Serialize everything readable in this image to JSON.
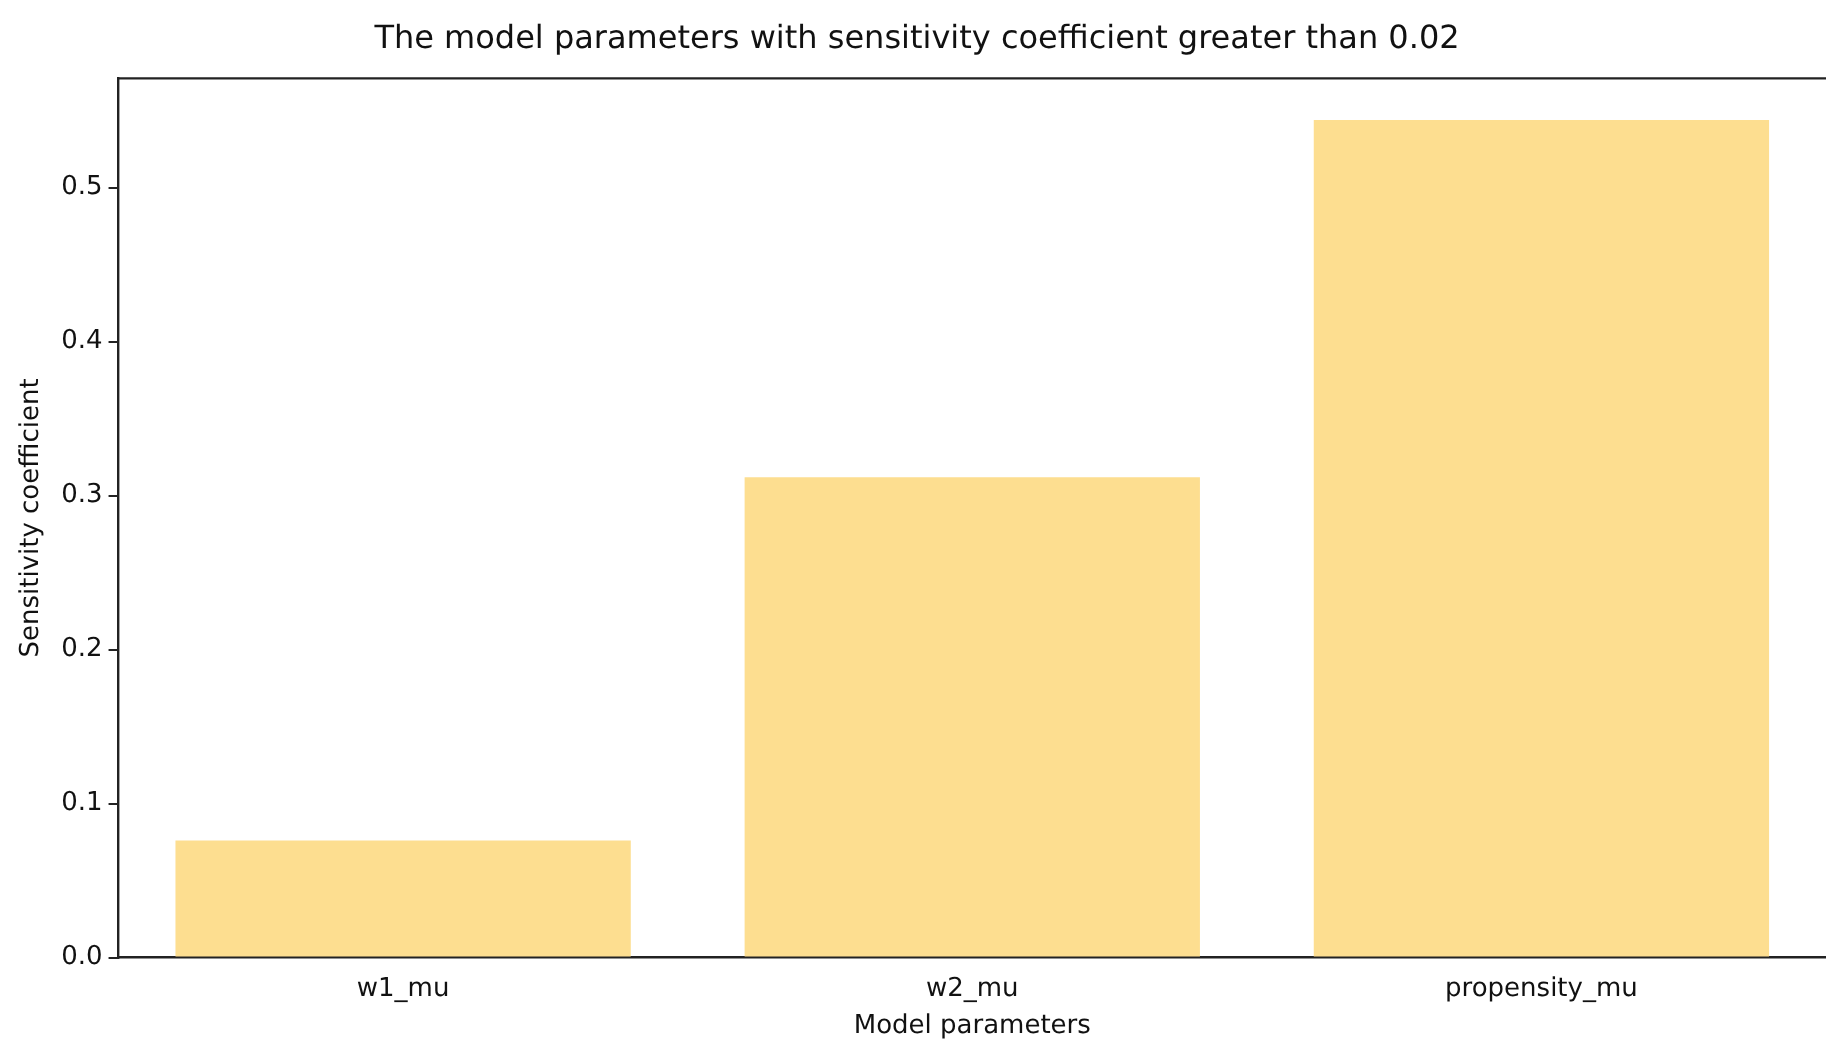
{
  "chart_data": {
    "type": "bar",
    "title": "The model parameters with sensitivity coefficient greater than 0.02",
    "xlabel": "Model parameters",
    "ylabel": "Sensitivity coefficient",
    "categories": [
      "w1_mu",
      "w2_mu",
      "propensity_mu"
    ],
    "values": [
      0.076,
      0.312,
      0.544
    ],
    "color": "#fdde90",
    "ylim": [
      0,
      0.571
    ],
    "yticks": [
      {
        "value": 0,
        "label": "0.0"
      },
      0.1,
      0.2,
      0.3,
      0.4,
      0.5
    ],
    "grid": false,
    "legend": false
  }
}
